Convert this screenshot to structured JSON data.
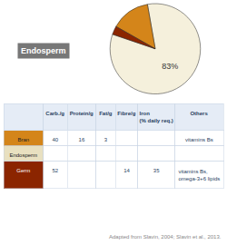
{
  "chart_data": [
    {
      "type": "pie",
      "values": [
        83,
        14,
        3
      ],
      "value_labels": [
        "83%",
        null,
        null
      ],
      "colors": [
        "#f5f0dc",
        "#d4851a",
        "#8b2500"
      ],
      "annotations": [
        "Endosperm"
      ]
    },
    {
      "type": "table",
      "columns": [
        null,
        "Carb./g",
        "Protein/g",
        "Fat/g",
        "Fibre/g",
        "Iron\n(% daily req.)",
        "Others"
      ],
      "rows": [
        [
          "Bran",
          "40",
          "16",
          "3",
          null,
          null,
          "vitamins Bs"
        ],
        [
          "Endosperm",
          null,
          null,
          null,
          null,
          null,
          null
        ],
        [
          "Germ",
          "52",
          null,
          null,
          "14",
          "35",
          "vitamins Bs,\nomega-3+6 lipids"
        ]
      ],
      "colors": [
        "#d4851a",
        "#e8e0c0",
        "#8b2500"
      ],
      "annotations": [
        "Adapted from Slavin, 2004; Slavin et al., 2013."
      ]
    }
  ]
}
